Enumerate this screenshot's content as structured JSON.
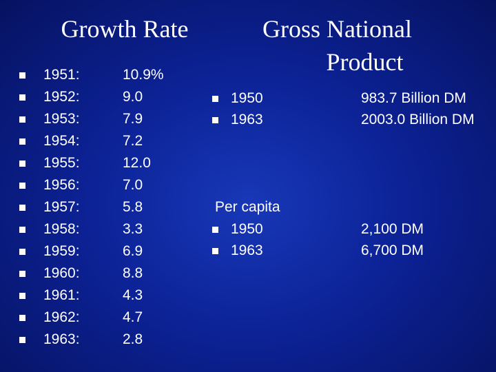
{
  "titles": {
    "growth_rate": "Growth Rate",
    "gnp_line1": "Gross National",
    "gnp_line2": "Product"
  },
  "growth_rates": [
    {
      "year": "1951:",
      "rate": "10.9%"
    },
    {
      "year": "1952:",
      "rate": "9.0"
    },
    {
      "year": "1953:",
      "rate": "7.9"
    },
    {
      "year": "1954:",
      "rate": "7.2"
    },
    {
      "year": "1955:",
      "rate": "12.0"
    },
    {
      "year": "1956:",
      "rate": "7.0"
    },
    {
      "year": "1957:",
      "rate": "5.8"
    },
    {
      "year": "1958:",
      "rate": "3.3"
    },
    {
      "year": "1959:",
      "rate": "6.9"
    },
    {
      "year": "1960:",
      "rate": "8.8"
    },
    {
      "year": "1961:",
      "rate": "4.3"
    },
    {
      "year": "1962:",
      "rate": "4.7"
    },
    {
      "year": "1963:",
      "rate": "2.8"
    }
  ],
  "gnp": {
    "total": [
      {
        "year": "1950",
        "value": "983.7 Billion DM"
      },
      {
        "year": "1963",
        "value": "2003.0 Billion DM"
      }
    ],
    "per_capita_label": "Per capita",
    "per_capita": [
      {
        "year": "1950",
        "value": "2,100 DM"
      },
      {
        "year": "1963",
        "value": "6,700 DM"
      }
    ]
  },
  "colors": {
    "background": "#0c2296",
    "text": "#ffffff"
  }
}
